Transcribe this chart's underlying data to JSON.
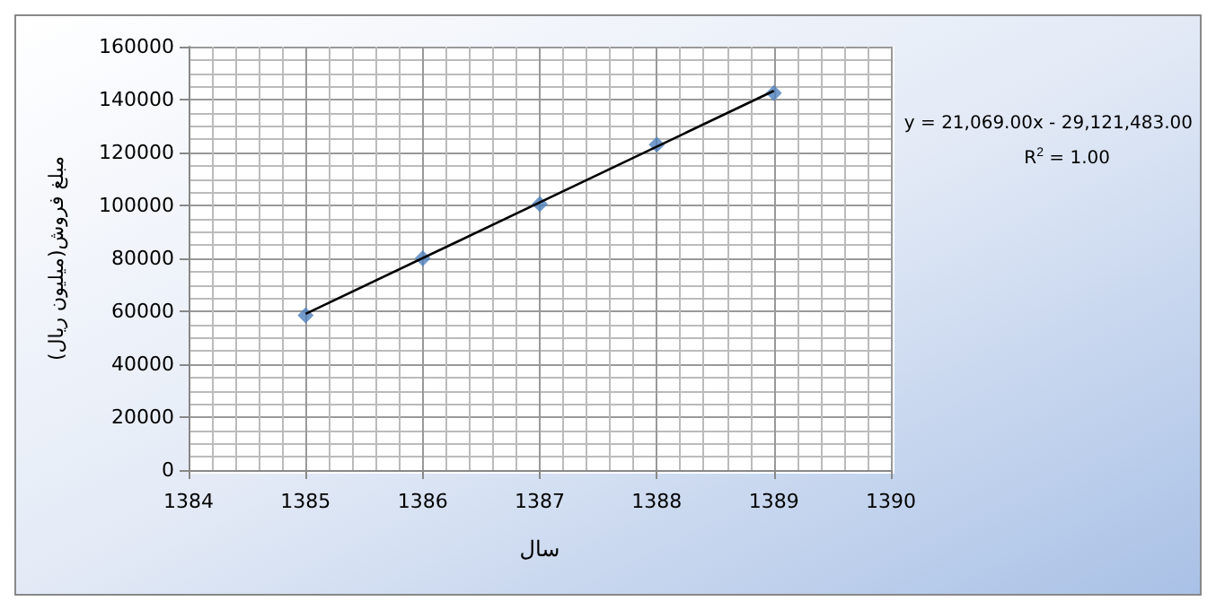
{
  "chart_data": {
    "type": "scatter",
    "xlabel": "سال",
    "ylabel": "مبلغ فروش(میلیون ریال)",
    "x": [
      1385,
      1386,
      1387,
      1388,
      1389
    ],
    "series": [
      {
        "color": "#4f81bd",
        "values": [
          58500,
          80000,
          100500,
          123000,
          142500
        ]
      },
      {
        "type": "line",
        "color": "#000000",
        "x": [
          1385,
          1389
        ],
        "values": [
          59000,
          143300
        ],
        "marker": "none"
      }
    ],
    "marker": "diamond",
    "xlim": [
      1384,
      1390
    ],
    "xticks": [
      1384,
      1385,
      1386,
      1387,
      1388,
      1389,
      1390
    ],
    "ylim": [
      0,
      160000
    ],
    "yticks": [
      0,
      20000,
      40000,
      60000,
      80000,
      100000,
      120000,
      140000,
      160000
    ],
    "grid": true,
    "annotations": [
      "y = 21,069.00x - 29,121,483.00",
      "R$^{2}$ = 1.00"
    ]
  }
}
